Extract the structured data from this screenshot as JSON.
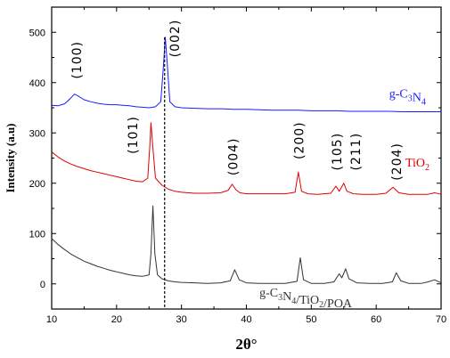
{
  "chart_data": {
    "type": "line",
    "title": "",
    "xlabel": "2θ°",
    "ylabel": "Intensity (a.u)",
    "xlim": [
      10,
      70
    ],
    "ylim": [
      -50,
      550
    ],
    "x_ticks": [
      10,
      20,
      30,
      40,
      50,
      60,
      70
    ],
    "y_ticks": [
      0,
      100,
      200,
      300,
      400,
      500
    ],
    "x_tick_labels": [
      "10",
      "20",
      "30",
      "40",
      "50",
      "60",
      "70"
    ],
    "y_tick_labels": [
      "0",
      "100",
      "200",
      "300",
      "400",
      "500"
    ],
    "grid": false,
    "legend": "none",
    "reference_line_x": 27.4,
    "series": [
      {
        "name": "g-C3N4",
        "label_main": "g-C",
        "label_sub1": "3",
        "label_mid": "N",
        "label_sub2": "4",
        "label_x": 62,
        "label_y": 370,
        "color": "#1a1aff",
        "points": [
          [
            10,
            355
          ],
          [
            11,
            354
          ],
          [
            12,
            358
          ],
          [
            13,
            370
          ],
          [
            13.5,
            377
          ],
          [
            14,
            374
          ],
          [
            15,
            366
          ],
          [
            16,
            362
          ],
          [
            17,
            359
          ],
          [
            18,
            357
          ],
          [
            19,
            356
          ],
          [
            20,
            356
          ],
          [
            21,
            355
          ],
          [
            22,
            354
          ],
          [
            23,
            352
          ],
          [
            24,
            351
          ],
          [
            25,
            350
          ],
          [
            26,
            352
          ],
          [
            26.8,
            362
          ],
          [
            27.2,
            430
          ],
          [
            27.5,
            490
          ],
          [
            27.8,
            440
          ],
          [
            28.2,
            362
          ],
          [
            29,
            352
          ],
          [
            30,
            350
          ],
          [
            32,
            349
          ],
          [
            34,
            348
          ],
          [
            36,
            348
          ],
          [
            38,
            347
          ],
          [
            40,
            347
          ],
          [
            42,
            346
          ],
          [
            44,
            345
          ],
          [
            46,
            345
          ],
          [
            48,
            345
          ],
          [
            50,
            344
          ],
          [
            52,
            344
          ],
          [
            54,
            344
          ],
          [
            56,
            343
          ],
          [
            58,
            343
          ],
          [
            60,
            343
          ],
          [
            62,
            343
          ],
          [
            64,
            342
          ],
          [
            66,
            342
          ],
          [
            68,
            342
          ],
          [
            70,
            342
          ]
        ]
      },
      {
        "name": "TiO2",
        "label_main": "TiO",
        "label_sub1": "2",
        "label_mid": "",
        "label_sub2": "",
        "label_x": 64.5,
        "label_y": 233,
        "color": "#e00000",
        "points": [
          [
            10,
            262
          ],
          [
            11,
            252
          ],
          [
            12,
            244
          ],
          [
            13,
            238
          ],
          [
            14,
            233
          ],
          [
            15,
            229
          ],
          [
            16,
            225
          ],
          [
            17,
            222
          ],
          [
            18,
            219
          ],
          [
            19,
            216
          ],
          [
            20,
            213
          ],
          [
            21,
            210
          ],
          [
            22,
            207
          ],
          [
            23,
            204
          ],
          [
            24,
            203
          ],
          [
            24.8,
            210
          ],
          [
            25.1,
            270
          ],
          [
            25.3,
            320
          ],
          [
            25.6,
            270
          ],
          [
            26,
            210
          ],
          [
            27,
            196
          ],
          [
            28,
            188
          ],
          [
            29,
            184
          ],
          [
            30,
            182
          ],
          [
            32,
            180
          ],
          [
            34,
            180
          ],
          [
            36,
            181
          ],
          [
            37.2,
            186
          ],
          [
            37.8,
            198
          ],
          [
            38.4,
            187
          ],
          [
            39,
            181
          ],
          [
            40,
            179
          ],
          [
            42,
            179
          ],
          [
            44,
            179
          ],
          [
            46,
            179
          ],
          [
            47.5,
            182
          ],
          [
            48,
            222
          ],
          [
            48.5,
            184
          ],
          [
            49.5,
            179
          ],
          [
            51,
            178
          ],
          [
            53,
            180
          ],
          [
            53.8,
            194
          ],
          [
            54.3,
            184
          ],
          [
            55,
            200
          ],
          [
            55.5,
            184
          ],
          [
            56.5,
            179
          ],
          [
            58,
            178
          ],
          [
            60,
            178
          ],
          [
            61.5,
            180
          ],
          [
            62.6,
            192
          ],
          [
            63.5,
            181
          ],
          [
            65,
            178
          ],
          [
            66,
            178
          ],
          [
            68,
            178
          ],
          [
            69,
            181
          ],
          [
            70,
            178
          ]
        ]
      },
      {
        "name": "g-C3N4/TiO2/POA",
        "label_main": "g-C",
        "label_sub1": "3",
        "label_mid": "N",
        "label_sub2": "4",
        "label_tail": "/TiO",
        "label_sub3": "2",
        "label_end": "/POA",
        "label_x": 42,
        "label_y": -25,
        "color": "#333333",
        "points": [
          [
            10,
            90
          ],
          [
            11,
            78
          ],
          [
            12,
            68
          ],
          [
            13,
            59
          ],
          [
            14,
            52
          ],
          [
            15,
            45
          ],
          [
            16,
            40
          ],
          [
            17,
            35
          ],
          [
            18,
            31
          ],
          [
            19,
            27
          ],
          [
            20,
            24
          ],
          [
            21,
            21
          ],
          [
            22,
            18
          ],
          [
            23,
            16
          ],
          [
            24,
            15
          ],
          [
            25,
            18
          ],
          [
            25.3,
            60
          ],
          [
            25.6,
            155
          ],
          [
            25.9,
            60
          ],
          [
            26.3,
            18
          ],
          [
            27,
            10
          ],
          [
            28,
            6
          ],
          [
            29,
            4
          ],
          [
            30,
            3
          ],
          [
            32,
            2
          ],
          [
            34,
            1
          ],
          [
            36,
            2
          ],
          [
            37.5,
            6
          ],
          [
            38.2,
            28
          ],
          [
            38.9,
            8
          ],
          [
            40,
            2
          ],
          [
            42,
            1
          ],
          [
            44,
            1
          ],
          [
            46,
            1
          ],
          [
            47.8,
            5
          ],
          [
            48.3,
            52
          ],
          [
            48.8,
            8
          ],
          [
            50,
            1
          ],
          [
            52,
            1
          ],
          [
            53.5,
            4
          ],
          [
            54.3,
            20
          ],
          [
            54.7,
            12
          ],
          [
            55.3,
            30
          ],
          [
            55.8,
            10
          ],
          [
            57,
            2
          ],
          [
            59,
            1
          ],
          [
            61,
            1
          ],
          [
            62.5,
            4
          ],
          [
            63.1,
            22
          ],
          [
            63.8,
            6
          ],
          [
            65,
            1
          ],
          [
            66,
            1
          ],
          [
            67,
            1
          ],
          [
            68,
            4
          ],
          [
            69,
            8
          ],
          [
            70,
            2
          ]
        ]
      }
    ],
    "peak_labels": [
      {
        "text": "(100)",
        "x": 14.5,
        "y": 445
      },
      {
        "text": "(002)",
        "x": 29.6,
        "y": 488
      },
      {
        "text": "(101)",
        "x": 23.2,
        "y": 296
      },
      {
        "text": "(004)",
        "x": 38.6,
        "y": 253
      },
      {
        "text": "(200)",
        "x": 48.8,
        "y": 285
      },
      {
        "text": "(105)",
        "x": 54.6,
        "y": 263
      },
      {
        "text": "(211)",
        "x": 57.5,
        "y": 263
      },
      {
        "text": "(204)",
        "x": 63.8,
        "y": 243
      }
    ]
  }
}
